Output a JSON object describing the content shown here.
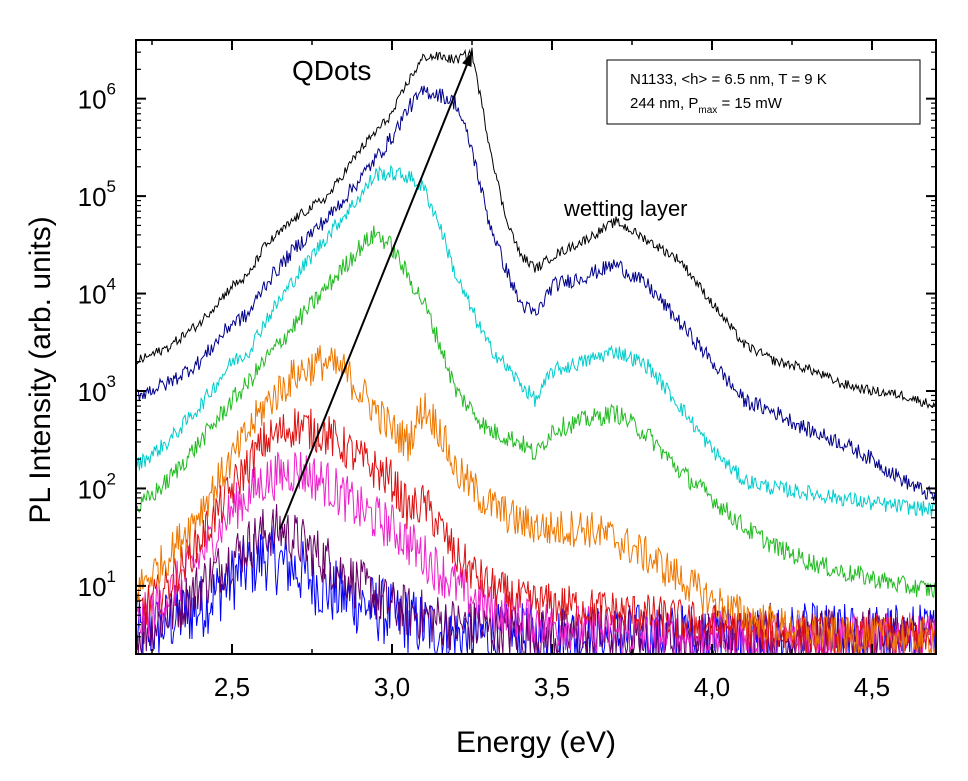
{
  "chart_data": {
    "type": "line",
    "title": "",
    "xlabel": "Energy (eV)",
    "ylabel": "PL Intensity (arb. units)",
    "xlim": [
      2.2,
      4.7
    ],
    "ylim": [
      2,
      4000000
    ],
    "y_scale": "log",
    "grid": false,
    "x_ticks": [
      2.5,
      3.0,
      3.5,
      4.0,
      4.5
    ],
    "x_tick_labels": [
      "2,5",
      "3,0",
      "3,5",
      "4,0",
      "4,5"
    ],
    "y_ticks": [
      {
        "value": 10,
        "base": "10",
        "exp": "1"
      },
      {
        "value": 100,
        "base": "10",
        "exp": "2"
      },
      {
        "value": 1000,
        "base": "10",
        "exp": "3"
      },
      {
        "value": 10000,
        "base": "10",
        "exp": "4"
      },
      {
        "value": 100000,
        "base": "10",
        "exp": "5"
      },
      {
        "value": 1000000,
        "base": "10",
        "exp": "6"
      }
    ],
    "info_box": {
      "line1": "N1133, <h> = 6.5 nm, T = 9 K",
      "line2_prefix": "244 nm, P",
      "line2_sub": "max",
      "line2_suffix": " = 15 mW",
      "placement": "top-right"
    },
    "annotations": {
      "qdots": "QDots",
      "wetting": "wetting layer",
      "arrow": {
        "from": [
          2.65,
          38
        ],
        "to": [
          3.25,
          3000000
        ]
      }
    },
    "series": [
      {
        "color": "#000000",
        "noise": 0.05,
        "points": [
          [
            2.2,
            2000
          ],
          [
            2.3,
            2800
          ],
          [
            2.4,
            5000
          ],
          [
            2.5,
            12000
          ],
          [
            2.55,
            15000
          ],
          [
            2.6,
            30000
          ],
          [
            2.7,
            60000
          ],
          [
            2.8,
            100000
          ],
          [
            2.9,
            300000
          ],
          [
            3.0,
            700000
          ],
          [
            3.05,
            1500000
          ],
          [
            3.1,
            2700000
          ],
          [
            3.15,
            2700000
          ],
          [
            3.2,
            2500000
          ],
          [
            3.25,
            3000000
          ],
          [
            3.3,
            400000
          ],
          [
            3.35,
            70000
          ],
          [
            3.4,
            25000
          ],
          [
            3.45,
            18000
          ],
          [
            3.5,
            24000
          ],
          [
            3.6,
            35000
          ],
          [
            3.7,
            55000
          ],
          [
            3.8,
            35000
          ],
          [
            3.9,
            22000
          ],
          [
            4.0,
            8000
          ],
          [
            4.1,
            3000
          ],
          [
            4.2,
            2000
          ],
          [
            4.3,
            1700
          ],
          [
            4.4,
            1200
          ],
          [
            4.5,
            1000
          ],
          [
            4.6,
            900
          ],
          [
            4.7,
            700
          ]
        ]
      },
      {
        "color": "#00008b",
        "noise": 0.08,
        "points": [
          [
            2.2,
            900
          ],
          [
            2.3,
            1200
          ],
          [
            2.4,
            2000
          ],
          [
            2.5,
            5000
          ],
          [
            2.55,
            6000
          ],
          [
            2.6,
            12000
          ],
          [
            2.7,
            30000
          ],
          [
            2.8,
            60000
          ],
          [
            2.9,
            150000
          ],
          [
            3.0,
            400000
          ],
          [
            3.05,
            800000
          ],
          [
            3.1,
            1200000
          ],
          [
            3.15,
            1100000
          ],
          [
            3.2,
            900000
          ],
          [
            3.25,
            300000
          ],
          [
            3.3,
            60000
          ],
          [
            3.35,
            20000
          ],
          [
            3.4,
            8000
          ],
          [
            3.45,
            6000
          ],
          [
            3.5,
            12000
          ],
          [
            3.6,
            15000
          ],
          [
            3.7,
            20000
          ],
          [
            3.8,
            12000
          ],
          [
            3.9,
            5000
          ],
          [
            4.0,
            2000
          ],
          [
            4.1,
            800
          ],
          [
            4.2,
            600
          ],
          [
            4.3,
            400
          ],
          [
            4.4,
            300
          ],
          [
            4.5,
            200
          ],
          [
            4.6,
            120
          ],
          [
            4.7,
            80
          ]
        ]
      },
      {
        "color": "#00cccc",
        "noise": 0.08,
        "points": [
          [
            2.2,
            170
          ],
          [
            2.3,
            300
          ],
          [
            2.4,
            700
          ],
          [
            2.5,
            2000
          ],
          [
            2.55,
            2500
          ],
          [
            2.6,
            5000
          ],
          [
            2.7,
            15000
          ],
          [
            2.8,
            40000
          ],
          [
            2.9,
            100000
          ],
          [
            2.95,
            170000
          ],
          [
            3.0,
            170000
          ],
          [
            3.05,
            160000
          ],
          [
            3.1,
            120000
          ],
          [
            3.15,
            50000
          ],
          [
            3.2,
            15000
          ],
          [
            3.3,
            3000
          ],
          [
            3.4,
            1200
          ],
          [
            3.45,
            800
          ],
          [
            3.5,
            1600
          ],
          [
            3.6,
            2000
          ],
          [
            3.7,
            2600
          ],
          [
            3.8,
            1800
          ],
          [
            3.9,
            700
          ],
          [
            4.0,
            250
          ],
          [
            4.1,
            120
          ],
          [
            4.2,
            100
          ],
          [
            4.3,
            90
          ],
          [
            4.4,
            80
          ],
          [
            4.5,
            70
          ],
          [
            4.6,
            65
          ],
          [
            4.7,
            60
          ]
        ]
      },
      {
        "color": "#22bb22",
        "noise": 0.1,
        "points": [
          [
            2.2,
            60
          ],
          [
            2.3,
            120
          ],
          [
            2.4,
            300
          ],
          [
            2.5,
            800
          ],
          [
            2.55,
            1200
          ],
          [
            2.6,
            2000
          ],
          [
            2.7,
            5000
          ],
          [
            2.8,
            12000
          ],
          [
            2.9,
            30000
          ],
          [
            2.95,
            42000
          ],
          [
            3.0,
            30000
          ],
          [
            3.05,
            15000
          ],
          [
            3.1,
            8000
          ],
          [
            3.15,
            3000
          ],
          [
            3.2,
            1000
          ],
          [
            3.3,
            400
          ],
          [
            3.4,
            300
          ],
          [
            3.45,
            220
          ],
          [
            3.5,
            400
          ],
          [
            3.6,
            500
          ],
          [
            3.7,
            600
          ],
          [
            3.8,
            350
          ],
          [
            3.9,
            150
          ],
          [
            4.0,
            80
          ],
          [
            4.1,
            40
          ],
          [
            4.2,
            25
          ],
          [
            4.3,
            18
          ],
          [
            4.4,
            14
          ],
          [
            4.5,
            12
          ],
          [
            4.6,
            10
          ],
          [
            4.7,
            9
          ]
        ]
      },
      {
        "color": "#ee7700",
        "noise": 0.2,
        "points": [
          [
            2.2,
            9
          ],
          [
            2.3,
            20
          ],
          [
            2.4,
            60
          ],
          [
            2.5,
            200
          ],
          [
            2.6,
            700
          ],
          [
            2.7,
            1500
          ],
          [
            2.78,
            2000
          ],
          [
            2.85,
            1600
          ],
          [
            2.9,
            1000
          ],
          [
            3.0,
            400
          ],
          [
            3.05,
            300
          ],
          [
            3.1,
            700
          ],
          [
            3.15,
            400
          ],
          [
            3.2,
            150
          ],
          [
            3.3,
            70
          ],
          [
            3.4,
            45
          ],
          [
            3.5,
            38
          ],
          [
            3.6,
            40
          ],
          [
            3.7,
            30
          ],
          [
            3.8,
            20
          ],
          [
            3.9,
            12
          ],
          [
            4.0,
            7
          ],
          [
            4.1,
            5
          ],
          [
            4.2,
            4
          ],
          [
            4.4,
            3
          ],
          [
            4.7,
            3
          ]
        ]
      },
      {
        "color": "#dd1111",
        "noise": 0.22,
        "points": [
          [
            2.2,
            5
          ],
          [
            2.3,
            10
          ],
          [
            2.4,
            30
          ],
          [
            2.5,
            100
          ],
          [
            2.6,
            300
          ],
          [
            2.7,
            450
          ],
          [
            2.8,
            350
          ],
          [
            2.9,
            200
          ],
          [
            3.0,
            120
          ],
          [
            3.05,
            60
          ],
          [
            3.1,
            70
          ],
          [
            3.15,
            40
          ],
          [
            3.2,
            20
          ],
          [
            3.3,
            10
          ],
          [
            3.4,
            7
          ],
          [
            3.6,
            6
          ],
          [
            3.8,
            5
          ],
          [
            4.0,
            4
          ],
          [
            4.3,
            3
          ],
          [
            4.7,
            3
          ]
        ]
      },
      {
        "color": "#ee22cc",
        "noise": 0.25,
        "points": [
          [
            2.2,
            4
          ],
          [
            2.3,
            8
          ],
          [
            2.4,
            20
          ],
          [
            2.5,
            60
          ],
          [
            2.6,
            120
          ],
          [
            2.7,
            160
          ],
          [
            2.8,
            110
          ],
          [
            2.9,
            60
          ],
          [
            3.0,
            40
          ],
          [
            3.1,
            20
          ],
          [
            3.2,
            10
          ],
          [
            3.3,
            6
          ],
          [
            3.5,
            4
          ],
          [
            3.8,
            3
          ],
          [
            4.7,
            3
          ]
        ]
      },
      {
        "color": "#660066",
        "noise": 0.28,
        "points": [
          [
            2.2,
            3
          ],
          [
            2.3,
            5
          ],
          [
            2.4,
            10
          ],
          [
            2.5,
            20
          ],
          [
            2.6,
            35
          ],
          [
            2.65,
            38
          ],
          [
            2.7,
            30
          ],
          [
            2.8,
            18
          ],
          [
            2.9,
            10
          ],
          [
            3.0,
            6
          ],
          [
            3.2,
            4
          ],
          [
            3.5,
            3
          ],
          [
            4.7,
            3
          ]
        ]
      },
      {
        "color": "#0000ff",
        "noise": 0.35,
        "points": [
          [
            2.2,
            3
          ],
          [
            2.4,
            6
          ],
          [
            2.5,
            12
          ],
          [
            2.6,
            20
          ],
          [
            2.7,
            15
          ],
          [
            2.8,
            9
          ],
          [
            3.0,
            5
          ],
          [
            3.2,
            3
          ],
          [
            3.6,
            3
          ],
          [
            4.7,
            3
          ]
        ]
      }
    ]
  }
}
